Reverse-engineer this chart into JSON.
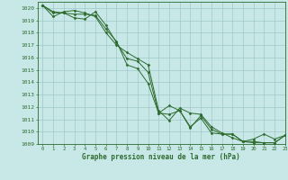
{
  "title": "Graphe pression niveau de la mer (hPa)",
  "background_color": "#c8e8e8",
  "grid_color": "#a0c8c8",
  "line_color": "#2d6a2d",
  "xlim": [
    -0.5,
    23
  ],
  "ylim": [
    1009,
    1020.5
  ],
  "yticks": [
    1009,
    1010,
    1011,
    1012,
    1013,
    1014,
    1015,
    1016,
    1017,
    1018,
    1019,
    1020
  ],
  "xticks": [
    0,
    1,
    2,
    3,
    4,
    5,
    6,
    7,
    8,
    9,
    10,
    11,
    12,
    13,
    14,
    15,
    16,
    17,
    18,
    19,
    20,
    21,
    22,
    23
  ],
  "series": [
    [
      1020.2,
      1019.7,
      1019.6,
      1019.5,
      1019.5,
      1019.4,
      1018.3,
      1017.3,
      1015.4,
      1015.1,
      1013.9,
      1011.5,
      1012.1,
      1011.7,
      1010.4,
      1011.1,
      1009.9,
      1009.8,
      1009.8,
      1009.2,
      1009.1,
      1009.1,
      1009.1,
      1009.7
    ],
    [
      1020.2,
      1019.3,
      1019.7,
      1019.8,
      1019.6,
      1019.3,
      1018.0,
      1017.0,
      1016.4,
      1015.9,
      1015.4,
      1011.7,
      1010.9,
      1011.9,
      1011.5,
      1011.4,
      1010.4,
      1009.9,
      1009.5,
      1009.2,
      1009.4,
      1009.8,
      1009.4,
      1009.7
    ],
    [
      1020.2,
      1019.6,
      1019.6,
      1019.2,
      1019.1,
      1019.7,
      1018.6,
      1017.2,
      1015.9,
      1015.7,
      1014.8,
      1011.5,
      1011.4,
      1011.7,
      1010.3,
      1011.3,
      1010.2,
      1009.8,
      1009.8,
      1009.2,
      1009.2,
      1009.1,
      1009.1,
      1009.7
    ]
  ]
}
